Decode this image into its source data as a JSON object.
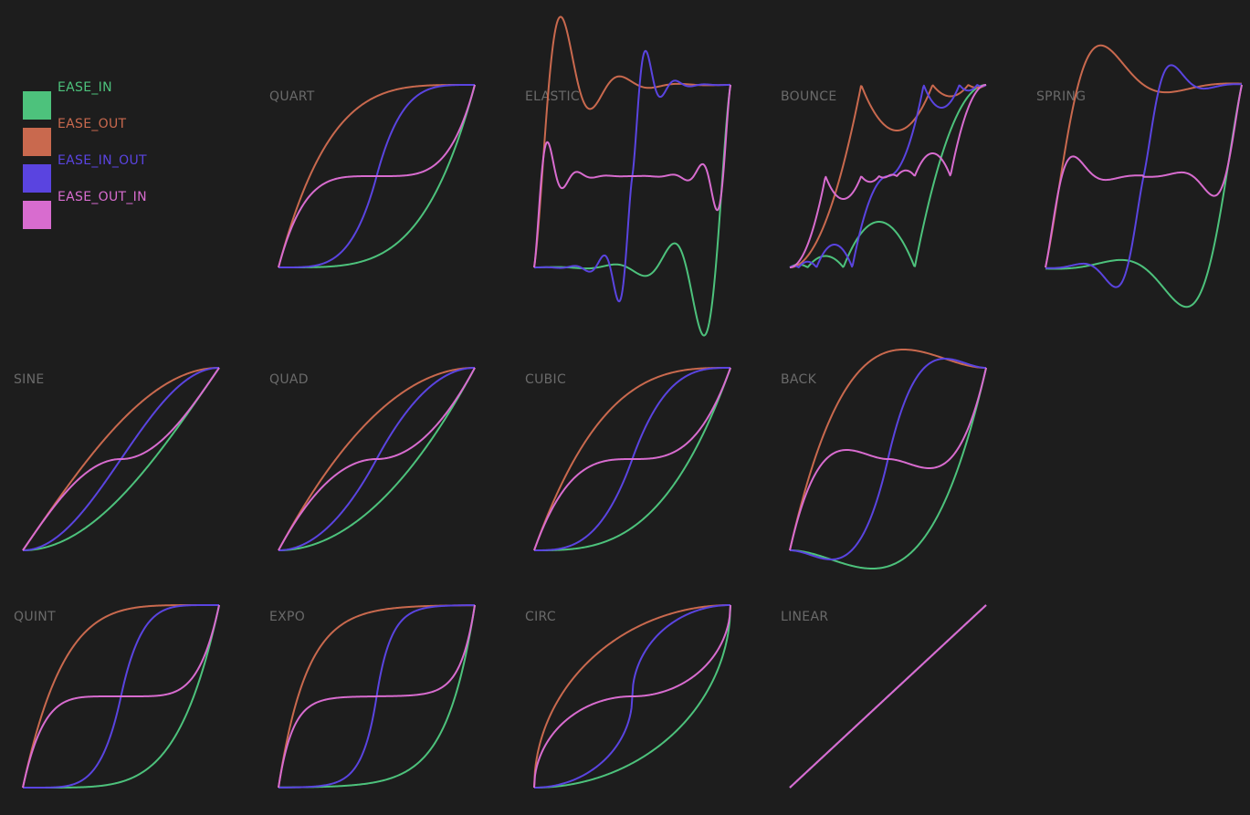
{
  "colors": {
    "background": "#1d1d1d",
    "title": "#6a6a6a",
    "EASE_IN": "#4dc27c",
    "EASE_OUT": "#c9694e",
    "EASE_IN_OUT": "#5a44e0",
    "EASE_OUT_IN": "#d86ccf"
  },
  "legend": [
    {
      "key": "EASE_IN",
      "label": "EASE_IN"
    },
    {
      "key": "EASE_OUT",
      "label": "EASE_OUT"
    },
    {
      "key": "EASE_IN_OUT",
      "label": "EASE_IN_OUT"
    },
    {
      "key": "EASE_OUT_IN",
      "label": "EASE_OUT_IN"
    }
  ],
  "chart_data": [
    {
      "type": "line",
      "title": "QUART",
      "xlim": [
        0,
        1
      ],
      "ylim": [
        0,
        1
      ],
      "grid": false,
      "series": [
        {
          "name": "EASE_IN"
        },
        {
          "name": "EASE_OUT"
        },
        {
          "name": "EASE_IN_OUT"
        },
        {
          "name": "EASE_OUT_IN"
        }
      ]
    },
    {
      "type": "line",
      "title": "ELASTIC",
      "xlim": [
        0,
        1
      ],
      "ylim": [
        0,
        1
      ],
      "grid": false,
      "series": [
        {
          "name": "EASE_IN"
        },
        {
          "name": "EASE_OUT"
        },
        {
          "name": "EASE_IN_OUT"
        },
        {
          "name": "EASE_OUT_IN"
        }
      ]
    },
    {
      "type": "line",
      "title": "BOUNCE",
      "xlim": [
        0,
        1
      ],
      "ylim": [
        0,
        1
      ],
      "grid": false,
      "series": [
        {
          "name": "EASE_IN"
        },
        {
          "name": "EASE_OUT"
        },
        {
          "name": "EASE_IN_OUT"
        },
        {
          "name": "EASE_OUT_IN"
        }
      ]
    },
    {
      "type": "line",
      "title": "SPRING",
      "xlim": [
        0,
        1
      ],
      "ylim": [
        0,
        1
      ],
      "grid": false,
      "series": [
        {
          "name": "EASE_IN"
        },
        {
          "name": "EASE_OUT"
        },
        {
          "name": "EASE_IN_OUT"
        },
        {
          "name": "EASE_OUT_IN"
        }
      ]
    },
    {
      "type": "line",
      "title": "SINE",
      "xlim": [
        0,
        1
      ],
      "ylim": [
        0,
        1
      ],
      "grid": false,
      "series": [
        {
          "name": "EASE_IN"
        },
        {
          "name": "EASE_OUT"
        },
        {
          "name": "EASE_IN_OUT"
        },
        {
          "name": "EASE_OUT_IN"
        }
      ]
    },
    {
      "type": "line",
      "title": "QUAD",
      "xlim": [
        0,
        1
      ],
      "ylim": [
        0,
        1
      ],
      "grid": false,
      "series": [
        {
          "name": "EASE_IN"
        },
        {
          "name": "EASE_OUT"
        },
        {
          "name": "EASE_IN_OUT"
        },
        {
          "name": "EASE_OUT_IN"
        }
      ]
    },
    {
      "type": "line",
      "title": "CUBIC",
      "xlim": [
        0,
        1
      ],
      "ylim": [
        0,
        1
      ],
      "grid": false,
      "series": [
        {
          "name": "EASE_IN"
        },
        {
          "name": "EASE_OUT"
        },
        {
          "name": "EASE_IN_OUT"
        },
        {
          "name": "EASE_OUT_IN"
        }
      ]
    },
    {
      "type": "line",
      "title": "BACK",
      "xlim": [
        0,
        1
      ],
      "ylim": [
        0,
        1
      ],
      "grid": false,
      "series": [
        {
          "name": "EASE_IN"
        },
        {
          "name": "EASE_OUT"
        },
        {
          "name": "EASE_IN_OUT"
        },
        {
          "name": "EASE_OUT_IN"
        }
      ]
    },
    {
      "type": "line",
      "title": "QUINT",
      "xlim": [
        0,
        1
      ],
      "ylim": [
        0,
        1
      ],
      "grid": false,
      "series": [
        {
          "name": "EASE_IN"
        },
        {
          "name": "EASE_OUT"
        },
        {
          "name": "EASE_IN_OUT"
        },
        {
          "name": "EASE_OUT_IN"
        }
      ]
    },
    {
      "type": "line",
      "title": "EXPO",
      "xlim": [
        0,
        1
      ],
      "ylim": [
        0,
        1
      ],
      "grid": false,
      "series": [
        {
          "name": "EASE_IN"
        },
        {
          "name": "EASE_OUT"
        },
        {
          "name": "EASE_IN_OUT"
        },
        {
          "name": "EASE_OUT_IN"
        }
      ]
    },
    {
      "type": "line",
      "title": "CIRC",
      "xlim": [
        0,
        1
      ],
      "ylim": [
        0,
        1
      ],
      "grid": false,
      "series": [
        {
          "name": "EASE_IN"
        },
        {
          "name": "EASE_OUT"
        },
        {
          "name": "EASE_IN_OUT"
        },
        {
          "name": "EASE_OUT_IN"
        }
      ]
    },
    {
      "type": "line",
      "title": "LINEAR",
      "xlim": [
        0,
        1
      ],
      "ylim": [
        0,
        1
      ],
      "grid": false,
      "series": [
        {
          "name": "EASE_IN"
        },
        {
          "name": "EASE_OUT"
        },
        {
          "name": "EASE_IN_OUT"
        },
        {
          "name": "EASE_OUT_IN"
        }
      ]
    }
  ]
}
